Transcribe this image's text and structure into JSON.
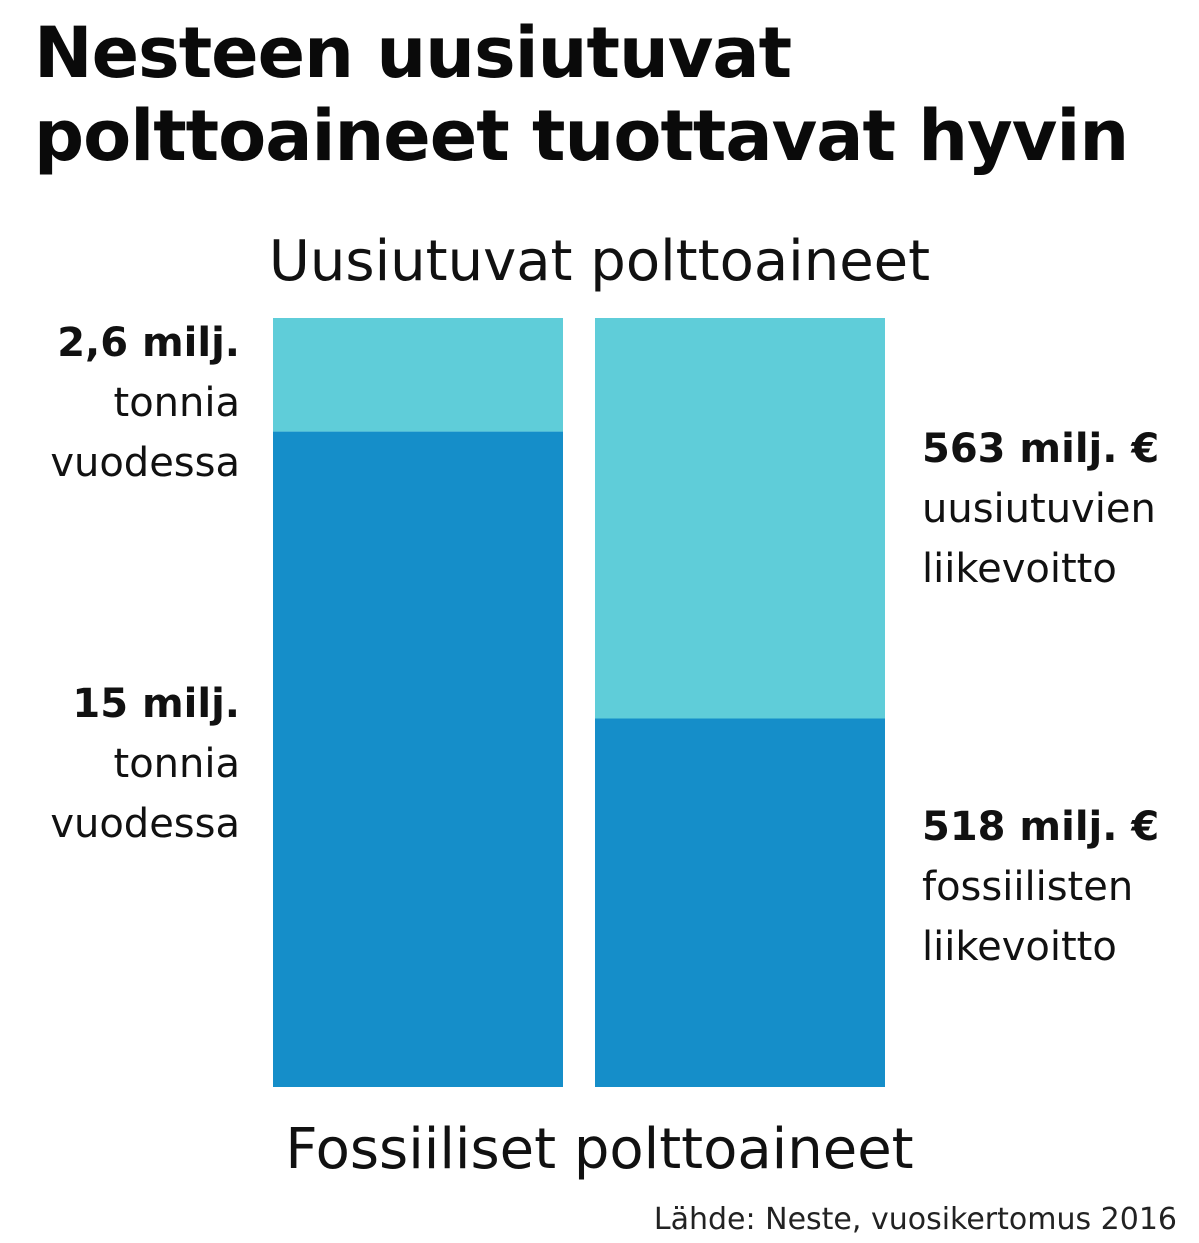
{
  "title": "Nesteen uusiutuvat polttoaineet tuottavat hyvin",
  "colors": {
    "renewable": "#5fcdd9",
    "fossil": "#158ec9"
  },
  "segment_labels": {
    "top": "Uusiutuvat polttoaineet",
    "bottom": "Fossiiliset polttoaineet"
  },
  "source": "Lähde: Neste, vuosikertomus 2016",
  "chart_data": {
    "type": "bar",
    "stacked": "percent",
    "categories": [
      "",
      ""
    ],
    "series": [
      {
        "name": "Fossiiliset polttoaineet",
        "values": [
          15,
          518
        ]
      },
      {
        "name": "Uusiutuvat polttoaineet",
        "values": [
          2.6,
          563
        ]
      }
    ],
    "labels": {
      "left": [
        {
          "num": "2,6 milj.",
          "line1": "tonnia",
          "line2": "vuodessa"
        },
        {
          "num": "15 milj.",
          "line1": "tonnia",
          "line2": "vuodessa"
        }
      ],
      "right": [
        {
          "num": "563 milj. €",
          "line1": "uusiutuvien",
          "line2": "liikevoitto"
        },
        {
          "num": "518 milj. €",
          "line1": "fossiilisten",
          "line2": "liikevoitto"
        }
      ]
    }
  }
}
